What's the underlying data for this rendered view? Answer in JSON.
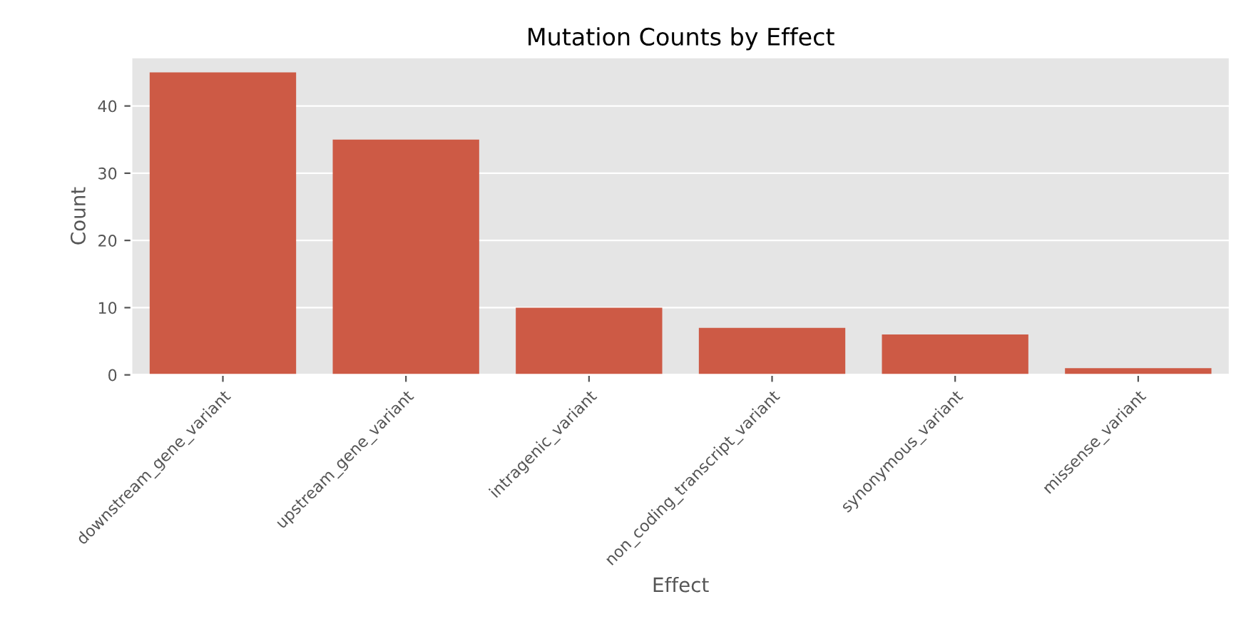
{
  "chart_data": {
    "type": "bar",
    "title": "Mutation Counts by Effect",
    "xlabel": "Effect",
    "ylabel": "Count",
    "categories": [
      "downstream_gene_variant",
      "upstream_gene_variant",
      "intragenic_variant",
      "non_coding_transcript_variant",
      "synonymous_variant",
      "missense_variant"
    ],
    "values": [
      45,
      35,
      10,
      7,
      6,
      1
    ],
    "color": "#cd5a45",
    "ylim": [
      0,
      47.25
    ],
    "yticks": [
      0,
      10,
      20,
      30,
      40
    ],
    "grid": "y"
  }
}
